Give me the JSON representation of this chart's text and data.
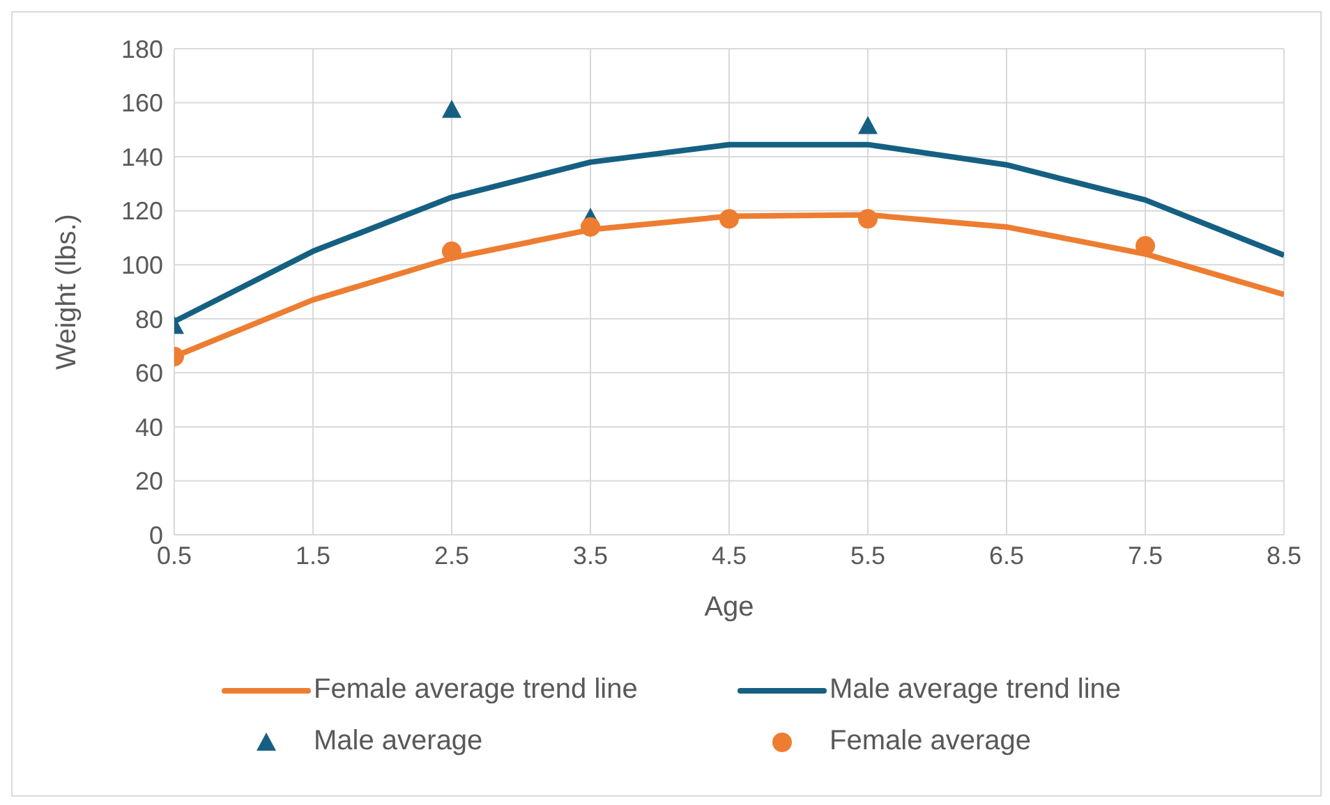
{
  "chart_data": {
    "type": "line",
    "xlabel": "Age",
    "ylabel": "Weight (lbs.)",
    "xlim": [
      0.5,
      8.5
    ],
    "xticks": [
      0.5,
      1.5,
      2.5,
      3.5,
      4.5,
      5.5,
      6.5,
      7.5,
      8.5
    ],
    "ylim": [
      0,
      180
    ],
    "yticks": [
      0,
      20,
      40,
      60,
      80,
      100,
      120,
      140,
      160,
      180
    ],
    "grid": true,
    "legend": "bottom",
    "series": [
      {
        "name": "Female average trend line",
        "color": "#ed7d31",
        "marker": "none",
        "x": [
          0.5,
          1.5,
          2.5,
          3.5,
          4.5,
          5.5,
          6.5,
          7.5,
          8.5
        ],
        "values": [
          66,
          87,
          102.5,
          113,
          118,
          118.5,
          114,
          104,
          89
        ]
      },
      {
        "name": "Male average trend line",
        "color": "#156082",
        "marker": "none",
        "x": [
          0.5,
          1.5,
          2.5,
          3.5,
          4.5,
          5.5,
          6.5,
          7.5,
          8.5
        ],
        "values": [
          79,
          105,
          125,
          138,
          144.5,
          144.5,
          137,
          124,
          103.5
        ]
      },
      {
        "name": "Male average",
        "type": "scatter",
        "color": "#156082",
        "marker": "triangle",
        "x": [
          0.5,
          2.5,
          3.5,
          5.5
        ],
        "values": [
          77,
          157,
          117,
          151
        ]
      },
      {
        "name": "Female average",
        "type": "scatter",
        "color": "#ed7d31",
        "marker": "circle",
        "x": [
          0.5,
          2.5,
          3.5,
          4.5,
          5.5,
          7.5
        ],
        "values": [
          66,
          105,
          114,
          117,
          117,
          107
        ]
      }
    ]
  }
}
